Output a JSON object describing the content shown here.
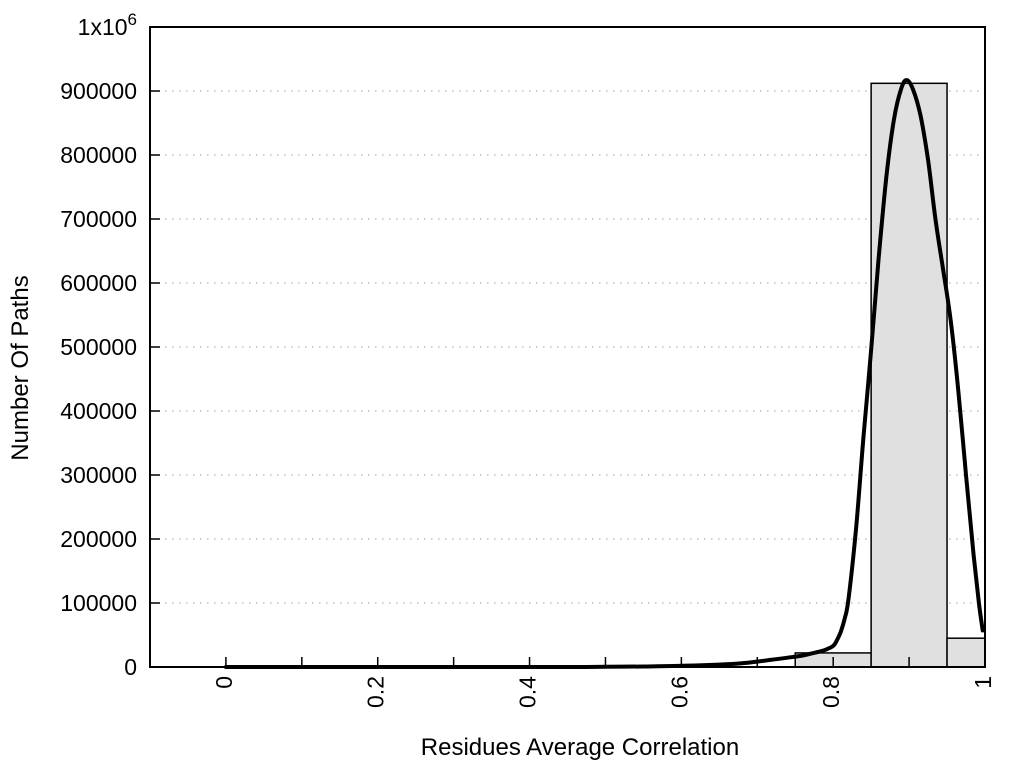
{
  "page": {
    "background": "#ffffff",
    "text_color": "#000000"
  },
  "chart_data": {
    "type": "bar",
    "subtype": "histogram-with-fit-curve",
    "title": "",
    "xlabel": "Residues Average Correlation",
    "ylabel": "Number Of Paths",
    "xlim": [
      -0.1,
      1.0
    ],
    "ylim": [
      0,
      1000000
    ],
    "legend": "none",
    "grid": {
      "horizontal": true,
      "vertical": false,
      "style": "dotted",
      "color": "#b3b3b3"
    },
    "x_ticks": {
      "labeled": [
        {
          "v": 0.0,
          "label": "0"
        },
        {
          "v": 0.2,
          "label": "0.2"
        },
        {
          "v": 0.4,
          "label": "0.4"
        },
        {
          "v": 0.6,
          "label": "0.6"
        },
        {
          "v": 0.8,
          "label": "0.8"
        },
        {
          "v": 1.0,
          "label": "1"
        }
      ],
      "minor": [
        0.1,
        0.3,
        0.5,
        0.7,
        0.9
      ],
      "label_rotation_deg": -90
    },
    "y_ticks": [
      {
        "v": 0,
        "label": "0"
      },
      {
        "v": 100000,
        "label": "100000"
      },
      {
        "v": 200000,
        "label": "200000"
      },
      {
        "v": 300000,
        "label": "300000"
      },
      {
        "v": 400000,
        "label": "400000"
      },
      {
        "v": 500000,
        "label": "500000"
      },
      {
        "v": 600000,
        "label": "600000"
      },
      {
        "v": 700000,
        "label": "700000"
      },
      {
        "v": 800000,
        "label": "800000"
      },
      {
        "v": 900000,
        "label": "900000"
      },
      {
        "v": 1000000,
        "label": "1x10^6"
      }
    ],
    "histogram": {
      "bin_width": 0.1,
      "fill_color": "#e0e0e0",
      "edge_color": "#000000",
      "bins": [
        {
          "x0": 0.75,
          "x1": 0.85,
          "center": 0.8,
          "count": 22000
        },
        {
          "x0": 0.85,
          "x1": 0.95,
          "center": 0.9,
          "count": 912000
        },
        {
          "x0": 0.95,
          "x1": 1.0,
          "center": 1.0,
          "count": 45000
        }
      ]
    },
    "curve": {
      "color": "#000000",
      "stroke_width": 4,
      "peak": {
        "x": 0.897,
        "y": 917000
      },
      "points": [
        [
          0.0,
          0
        ],
        [
          0.05,
          0
        ],
        [
          0.1,
          0
        ],
        [
          0.15,
          0
        ],
        [
          0.2,
          0
        ],
        [
          0.25,
          0
        ],
        [
          0.3,
          0
        ],
        [
          0.35,
          0
        ],
        [
          0.4,
          0
        ],
        [
          0.45,
          0
        ],
        [
          0.5,
          300
        ],
        [
          0.55,
          800
        ],
        [
          0.6,
          1800
        ],
        [
          0.65,
          3800
        ],
        [
          0.68,
          6000
        ],
        [
          0.7,
          8500
        ],
        [
          0.72,
          11500
        ],
        [
          0.74,
          14500
        ],
        [
          0.76,
          18000
        ],
        [
          0.78,
          23500
        ],
        [
          0.79,
          27000
        ],
        [
          0.8,
          33000
        ],
        [
          0.805,
          42000
        ],
        [
          0.81,
          55000
        ],
        [
          0.815,
          75000
        ],
        [
          0.82,
          105000
        ],
        [
          0.83,
          215000
        ],
        [
          0.84,
          360000
        ],
        [
          0.85,
          495000
        ],
        [
          0.86,
          640000
        ],
        [
          0.87,
          765000
        ],
        [
          0.88,
          855000
        ],
        [
          0.89,
          905000
        ],
        [
          0.897,
          917000
        ],
        [
          0.905,
          903000
        ],
        [
          0.915,
          862000
        ],
        [
          0.925,
          792000
        ],
        [
          0.935,
          697000
        ],
        [
          0.945,
          620000
        ],
        [
          0.955,
          540000
        ],
        [
          0.965,
          430000
        ],
        [
          0.975,
          300000
        ],
        [
          0.985,
          175000
        ],
        [
          0.992,
          100000
        ],
        [
          0.997,
          57000
        ]
      ]
    }
  }
}
